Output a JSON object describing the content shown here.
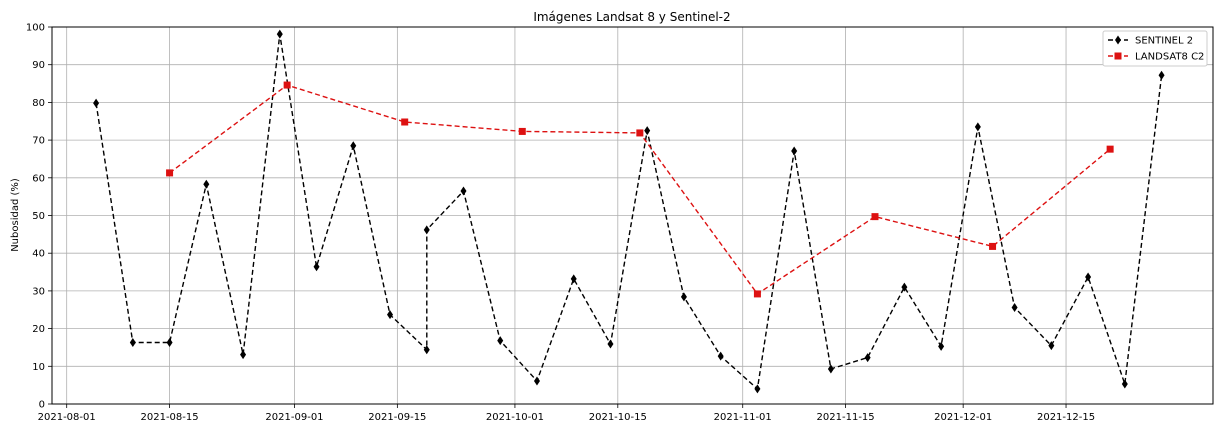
{
  "chart_data": {
    "type": "line",
    "title": "Imágenes Landsat 8 y Sentinel-2",
    "xlabel": "",
    "ylabel": "Nubosidad (%)",
    "xlim": [
      "2021-07-30",
      "2022-01-04"
    ],
    "ylim": [
      0,
      100
    ],
    "grid": true,
    "legend_position": "top-right",
    "x_ticks": [
      "2021-08-01",
      "2021-08-15",
      "2021-09-01",
      "2021-09-15",
      "2021-10-01",
      "2021-10-15",
      "2021-11-01",
      "2021-11-15",
      "2021-12-01",
      "2021-12-15"
    ],
    "y_ticks": [
      0,
      10,
      20,
      30,
      40,
      50,
      60,
      70,
      80,
      90,
      100
    ],
    "series": [
      {
        "name": "SENTINEL 2",
        "color": "#000000",
        "marker": "diamond",
        "line_style": "dashed",
        "points": [
          {
            "x": "2021-08-05",
            "y": 79.8
          },
          {
            "x": "2021-08-10",
            "y": 16.3
          },
          {
            "x": "2021-08-15",
            "y": 16.3
          },
          {
            "x": "2021-08-20",
            "y": 58.3
          },
          {
            "x": "2021-08-25",
            "y": 13.1
          },
          {
            "x": "2021-08-30",
            "y": 98.1
          },
          {
            "x": "2021-09-04",
            "y": 36.4
          },
          {
            "x": "2021-09-09",
            "y": 68.5
          },
          {
            "x": "2021-09-14",
            "y": 23.7
          },
          {
            "x": "2021-09-19",
            "y": 14.4
          },
          {
            "x": "2021-09-19",
            "y": 46.2
          },
          {
            "x": "2021-09-24",
            "y": 56.5
          },
          {
            "x": "2021-09-29",
            "y": 16.8
          },
          {
            "x": "2021-10-04",
            "y": 6.1
          },
          {
            "x": "2021-10-09",
            "y": 33.2
          },
          {
            "x": "2021-10-14",
            "y": 15.9
          },
          {
            "x": "2021-10-19",
            "y": 72.5
          },
          {
            "x": "2021-10-24",
            "y": 28.4
          },
          {
            "x": "2021-10-29",
            "y": 12.7
          },
          {
            "x": "2021-11-03",
            "y": 4.0
          },
          {
            "x": "2021-11-08",
            "y": 67.1
          },
          {
            "x": "2021-11-13",
            "y": 9.3
          },
          {
            "x": "2021-11-18",
            "y": 12.3
          },
          {
            "x": "2021-11-23",
            "y": 31.0
          },
          {
            "x": "2021-11-28",
            "y": 15.3
          },
          {
            "x": "2021-12-03",
            "y": 73.5
          },
          {
            "x": "2021-12-08",
            "y": 25.6
          },
          {
            "x": "2021-12-13",
            "y": 15.5
          },
          {
            "x": "2021-12-18",
            "y": 33.7
          },
          {
            "x": "2021-12-23",
            "y": 5.3
          },
          {
            "x": "2021-12-28",
            "y": 87.2
          }
        ]
      },
      {
        "name": "LANDSAT8 C2",
        "color": "#dd1111",
        "marker": "square",
        "line_style": "dashed",
        "points": [
          {
            "x": "2021-08-15",
            "y": 61.3
          },
          {
            "x": "2021-08-31",
            "y": 84.6
          },
          {
            "x": "2021-09-16",
            "y": 74.8
          },
          {
            "x": "2021-10-02",
            "y": 72.3
          },
          {
            "x": "2021-10-18",
            "y": 71.9
          },
          {
            "x": "2021-11-03",
            "y": 29.2
          },
          {
            "x": "2021-11-19",
            "y": 49.7
          },
          {
            "x": "2021-12-05",
            "y": 41.8
          },
          {
            "x": "2021-12-21",
            "y": 67.6
          }
        ]
      }
    ]
  }
}
